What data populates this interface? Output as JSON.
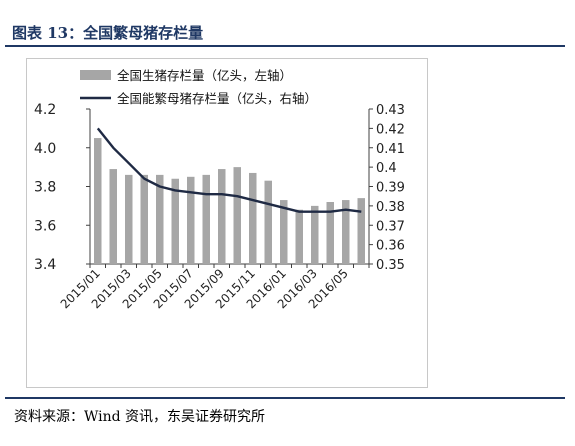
{
  "header": {
    "title": "图表 13：全国繁母猪存栏量"
  },
  "footer": {
    "source": "资料来源：Wind 资讯，东吴证券研究所"
  },
  "colors": {
    "bar": "#a6a6a6",
    "line": "#1f2a44",
    "title": "#1f3864",
    "rule": "#1f3864"
  },
  "chart_data": {
    "type": "bar",
    "categories": [
      "2015/01",
      "2015/02",
      "2015/03",
      "2015/04",
      "2015/05",
      "2015/06",
      "2015/07",
      "2015/08",
      "2015/09",
      "2015/10",
      "2015/11",
      "2015/12",
      "2016/01",
      "2016/02",
      "2016/03",
      "2016/04",
      "2016/05",
      "2016/06"
    ],
    "x_tick_labels": [
      "2015/01",
      "2015/03",
      "2015/05",
      "2015/07",
      "2015/09",
      "2015/11",
      "2016/01",
      "2016/03",
      "2016/05"
    ],
    "series": [
      {
        "name": "全国生猪存栏量（亿头，左轴）",
        "type": "bar",
        "axis": "left",
        "values": [
          4.05,
          3.89,
          3.86,
          3.86,
          3.86,
          3.84,
          3.85,
          3.86,
          3.89,
          3.9,
          3.87,
          3.83,
          3.73,
          3.68,
          3.7,
          3.72,
          3.73,
          3.74
        ]
      },
      {
        "name": "全国能繁母猪存栏量（亿头，右轴）",
        "type": "line",
        "axis": "right",
        "values": [
          0.42,
          0.41,
          0.402,
          0.394,
          0.39,
          0.388,
          0.387,
          0.386,
          0.386,
          0.385,
          0.383,
          0.381,
          0.379,
          0.377,
          0.377,
          0.377,
          0.378,
          0.377
        ]
      }
    ],
    "left_axis": {
      "ylim": [
        3.4,
        4.2
      ],
      "ticks": [
        "3.4",
        "3.6",
        "3.8",
        "4.0",
        "4.2"
      ]
    },
    "right_axis": {
      "ylim": [
        0.35,
        0.43
      ],
      "ticks": [
        "0.35",
        "0.36",
        "0.37",
        "0.38",
        "0.39",
        "0.4",
        "0.41",
        "0.42",
        "0.43"
      ]
    },
    "grid": false,
    "legend_position": "top"
  }
}
